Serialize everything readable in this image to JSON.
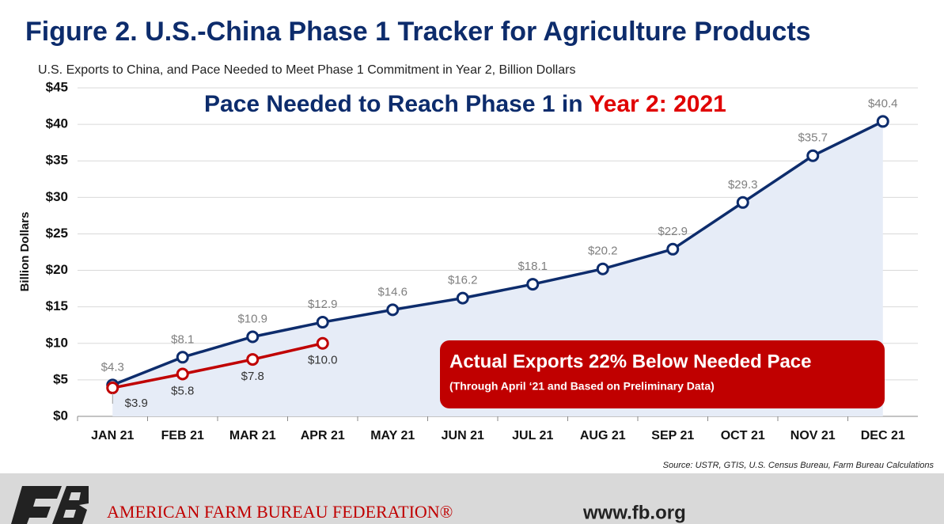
{
  "chart_data": {
    "type": "line",
    "title": "Figure 2. U.S.-China Phase 1 Tracker for Agriculture Products",
    "subtitle": "U.S. Exports to China, and Pace Needed to Meet Phase 1 Commitment in Year 2, Billion Dollars",
    "heading": "Pace Needed to Reach Phase 1 in ",
    "heading_highlight": "Year 2: 2021",
    "y_label": "Billion Dollars",
    "annotation": "Actual Exports 22% Below Needed Pace",
    "annotation_note": "(Through April ‘21 and Based on Preliminary Data)",
    "source": "Source: USTR, GTIS, U.S. Census Bureau, Farm Bureau Calculations",
    "categories": [
      "JAN 21",
      "FEB 21",
      "MAR 21",
      "APR 21",
      "MAY 21",
      "JUN 21",
      "JUL 21",
      "AUG 21",
      "SEP 21",
      "OCT 21",
      "NOV 21",
      "DEC 21"
    ],
    "series": [
      {
        "color": "#0d2c6c",
        "area_color": "#e6ecf7",
        "values": [
          4.3,
          8.1,
          10.9,
          12.9,
          14.6,
          16.2,
          18.1,
          20.2,
          22.9,
          29.3,
          35.7,
          40.4
        ],
        "value_labels": [
          "$4.3",
          "$8.1",
          "$10.9",
          "$12.9",
          "$14.6",
          "$16.2",
          "$18.1",
          "$20.2",
          "$22.9",
          "$29.3",
          "$35.7",
          "$40.4"
        ]
      },
      {
        "color": "#c00000",
        "values": [
          3.9,
          5.8,
          7.8,
          10.0,
          null,
          null,
          null,
          null,
          null,
          null,
          null,
          null
        ],
        "value_labels": [
          "$3.9",
          "$5.8",
          "$7.8",
          "$10.0",
          null,
          null,
          null,
          null,
          null,
          null,
          null,
          null
        ]
      }
    ],
    "ylim": [
      0,
      45
    ],
    "yticks": [
      {
        "value": 0,
        "label": "$0"
      },
      {
        "value": 5,
        "label": "$5"
      },
      {
        "value": 10,
        "label": "$10"
      },
      {
        "value": 15,
        "label": "$15"
      },
      {
        "value": 20,
        "label": "$20"
      },
      {
        "value": 25,
        "label": "$25"
      },
      {
        "value": 30,
        "label": "$30"
      },
      {
        "value": 35,
        "label": "$35"
      },
      {
        "value": 40,
        "label": "$40"
      },
      {
        "value": 45,
        "label": "$45"
      }
    ],
    "grid": true
  },
  "footer": {
    "organization": "AMERICAN FARM BUREAU FEDERATION®",
    "website": "www.fb.org"
  }
}
